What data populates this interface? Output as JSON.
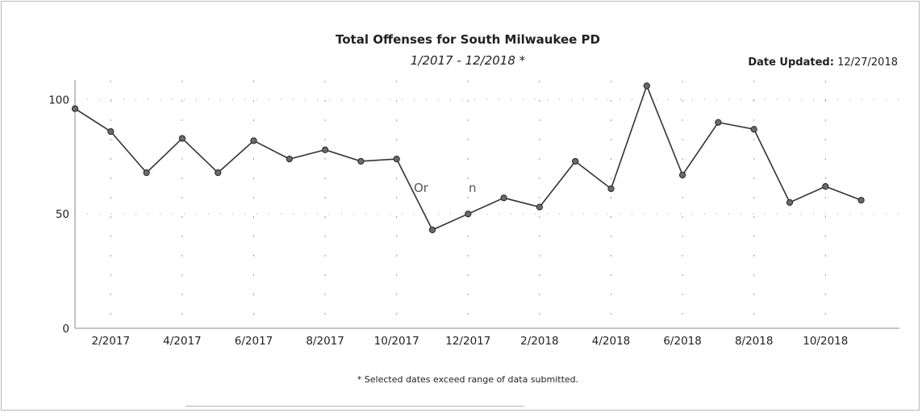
{
  "header": {
    "title": "Total Offenses for South Milwaukee PD",
    "subtitle": "1/2017 - 12/2018 *",
    "updated_label": "Date Updated:",
    "updated_value": "12/27/2018"
  },
  "footnote": "* Selected dates exceed range of data submitted.",
  "stray_text": [
    "Or",
    "n"
  ],
  "chart_data": {
    "type": "line",
    "title": "Total Offenses for South Milwaukee PD",
    "subtitle": "1/2017 - 12/2018 *",
    "xlabel": "",
    "ylabel": "",
    "ylim": [
      0,
      110
    ],
    "yticks": [
      0,
      50,
      100
    ],
    "x_tick_labels": [
      "2/2017",
      "4/2017",
      "6/2017",
      "8/2017",
      "10/2017",
      "12/2017",
      "2/2018",
      "4/2018",
      "6/2018",
      "8/2018",
      "10/2018"
    ],
    "x": [
      "1/2017",
      "2/2017",
      "3/2017",
      "4/2017",
      "5/2017",
      "6/2017",
      "7/2017",
      "8/2017",
      "9/2017",
      "10/2017",
      "11/2017",
      "12/2017",
      "1/2018",
      "2/2018",
      "3/2018",
      "4/2018",
      "5/2018",
      "6/2018",
      "7/2018",
      "8/2018",
      "9/2018",
      "10/2018",
      "11/2018"
    ],
    "series": [
      {
        "values": [
          96,
          86,
          68,
          83,
          68,
          82,
          74,
          78,
          73,
          74,
          43,
          50,
          57,
          53,
          73,
          61,
          106,
          67,
          90,
          87,
          55,
          62,
          56
        ]
      }
    ],
    "grid": true,
    "color": "#333333"
  }
}
